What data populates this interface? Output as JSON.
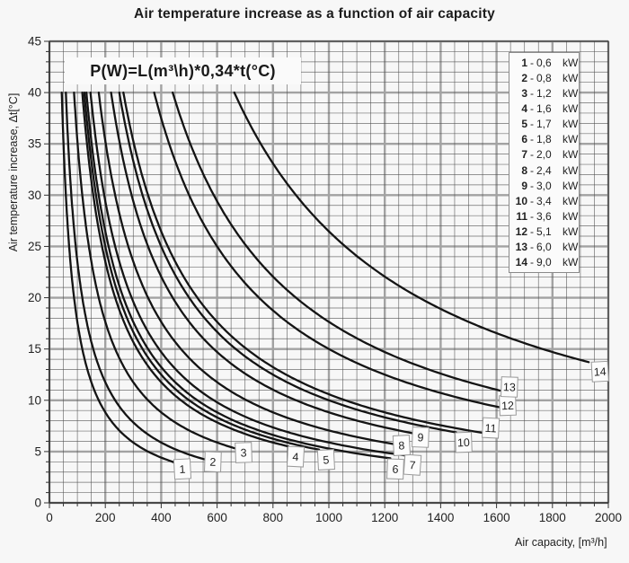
{
  "title": "Air temperature increase as a function of air capacity",
  "formula": "P(W)=L(m³\\h)*0,34*t(°C)",
  "axes": {
    "x": {
      "title": "Air capacity, [m³/h]",
      "min": 0,
      "max": 2000,
      "tick_labels": [
        0,
        200,
        400,
        600,
        800,
        1000,
        1200,
        1400,
        1600,
        1800,
        2000
      ],
      "minor_step": 50,
      "major_step": 200
    },
    "y": {
      "title": "Air temperature increase, Δt[°C]",
      "min": 0,
      "max": 45,
      "tick_labels": [
        0,
        5,
        10,
        15,
        20,
        25,
        30,
        35,
        40,
        45
      ],
      "minor_step": 1,
      "major_step": 5
    }
  },
  "legend": {
    "unit": "kW",
    "entries": [
      {
        "num": "1",
        "value": "0,6"
      },
      {
        "num": "2",
        "value": "0,8"
      },
      {
        "num": "3",
        "value": "1,2"
      },
      {
        "num": "4",
        "value": "1,6"
      },
      {
        "num": "5",
        "value": "1,7"
      },
      {
        "num": "6",
        "value": "1,8"
      },
      {
        "num": "7",
        "value": "2,0"
      },
      {
        "num": "8",
        "value": "2,4"
      },
      {
        "num": "9",
        "value": "3,0"
      },
      {
        "num": "10",
        "value": "3,4"
      },
      {
        "num": "11",
        "value": "3,6"
      },
      {
        "num": "12",
        "value": "5,1"
      },
      {
        "num": "13",
        "value": "6,0"
      },
      {
        "num": "14",
        "value": "9,0"
      }
    ]
  },
  "chart_data": {
    "type": "line",
    "title": "Air temperature increase as a function of air capacity",
    "xlabel": "Air capacity, [m³/h]",
    "ylabel": "Air temperature increase, Δt[°C]",
    "xlim": [
      0,
      2000
    ],
    "ylim": [
      0,
      45
    ],
    "grid": {
      "x_minor": 50,
      "x_major": 200,
      "y_minor": 1,
      "y_major": 5,
      "on": true
    },
    "curve_rule": "t(°C) = P(W) / (0.34 * L(m³/h)); each curve plotted from t=40 down to L=L_end",
    "coefficient": 0.34,
    "t_start": 40,
    "legend_position": "upper right",
    "series": [
      {
        "label": "1",
        "power_kW": 0.6,
        "L_end": 450,
        "label_x": 476,
        "label_y": 3.3
      },
      {
        "label": "2",
        "power_kW": 0.8,
        "L_end": 560,
        "label_x": 585,
        "label_y": 4.0
      },
      {
        "label": "3",
        "power_kW": 1.2,
        "L_end": 668,
        "label_x": 695,
        "label_y": 4.9
      },
      {
        "label": "4",
        "power_kW": 1.6,
        "L_end": 855,
        "label_x": 881,
        "label_y": 4.5
      },
      {
        "label": "5",
        "power_kW": 1.7,
        "L_end": 965,
        "label_x": 990,
        "label_y": 4.2
      },
      {
        "label": "6",
        "power_kW": 1.8,
        "L_end": 1220,
        "label_x": 1238,
        "label_y": 3.3
      },
      {
        "label": "7",
        "power_kW": 2.0,
        "L_end": 1270,
        "label_x": 1299,
        "label_y": 3.7
      },
      {
        "label": "8",
        "power_kW": 2.4,
        "L_end": 1235,
        "label_x": 1260,
        "label_y": 5.6
      },
      {
        "label": "9",
        "power_kW": 3.0,
        "L_end": 1300,
        "label_x": 1328,
        "label_y": 6.4
      },
      {
        "label": "10",
        "power_kW": 3.4,
        "L_end": 1455,
        "label_x": 1482,
        "label_y": 5.9
      },
      {
        "label": "11",
        "power_kW": 3.6,
        "L_end": 1552,
        "label_x": 1579,
        "label_y": 7.3
      },
      {
        "label": "12",
        "power_kW": 5.1,
        "L_end": 1608,
        "label_x": 1640,
        "label_y": 9.5
      },
      {
        "label": "13",
        "power_kW": 6.0,
        "L_end": 1612,
        "label_x": 1646,
        "label_y": 11.3
      },
      {
        "label": "14",
        "power_kW": 9.0,
        "L_end": 1930,
        "label_x": 1970,
        "label_y": 12.8
      }
    ]
  },
  "colors": {
    "background": "#f7f7f7",
    "curve": "#141414",
    "grid_minor": "#4f4f4f",
    "grid_major": "#a2a2a2",
    "axis": "#333333",
    "text": "#222222",
    "label_box_bg": "#fcfcfc",
    "label_box_border": "#9a9a9a",
    "legend_bg": "#fbfbfb",
    "legend_border": "#8a8a8a"
  }
}
